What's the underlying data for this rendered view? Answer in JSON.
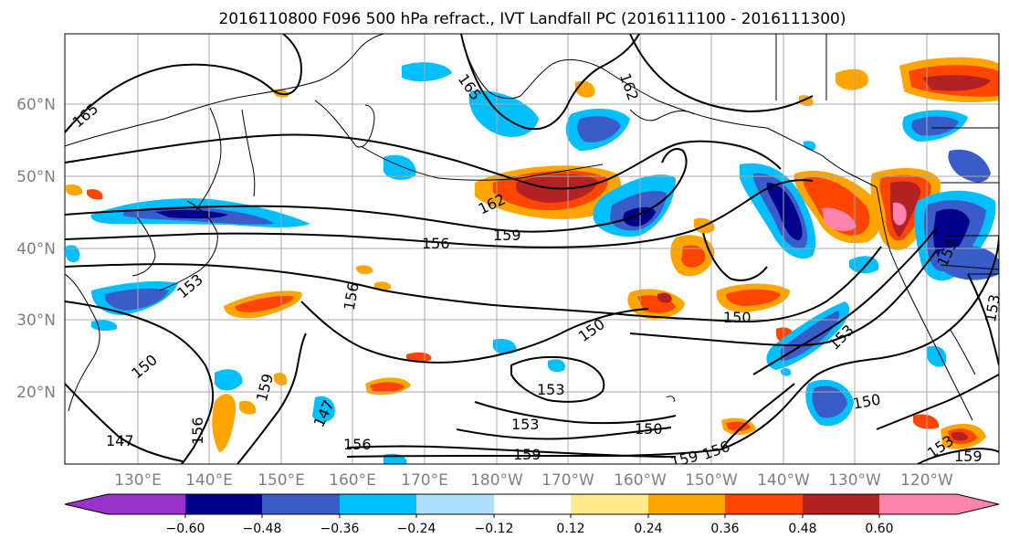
{
  "title": "2016110800 F096 500 hPa refract., IVT Landfall PC (2016111100 - 2016111300)",
  "map": {
    "lat_labels": [
      "60°N",
      "50°N",
      "40°N",
      "30°N",
      "20°N"
    ],
    "lon_labels": [
      "130°E",
      "140°E",
      "150°E",
      "160°E",
      "170°E",
      "180°W",
      "170°W",
      "160°W",
      "150°W",
      "140°W",
      "130°W",
      "120°W"
    ],
    "contour_labels": [
      "165",
      "165",
      "162",
      "162",
      "159",
      "156",
      "156",
      "153",
      "150",
      "150",
      "150",
      "153",
      "150",
      "147",
      "159",
      "156",
      "147",
      "156",
      "159",
      "159",
      "156",
      "153",
      "150",
      "153",
      "159",
      "153",
      "153",
      "153"
    ]
  },
  "colorbar": {
    "ticks": [
      "−0.60",
      "−0.48",
      "−0.36",
      "−0.24",
      "−0.12",
      "0.12",
      "0.24",
      "0.36",
      "0.48",
      "0.60"
    ],
    "colors": [
      "#9932CC",
      "#00008B",
      "#3A5CC8",
      "#00BFFF",
      "#ADDFFF",
      "#FFFFFF",
      "#FFEB8A",
      "#FFA500",
      "#FF4500",
      "#B22222",
      "#FF85AE"
    ]
  }
}
